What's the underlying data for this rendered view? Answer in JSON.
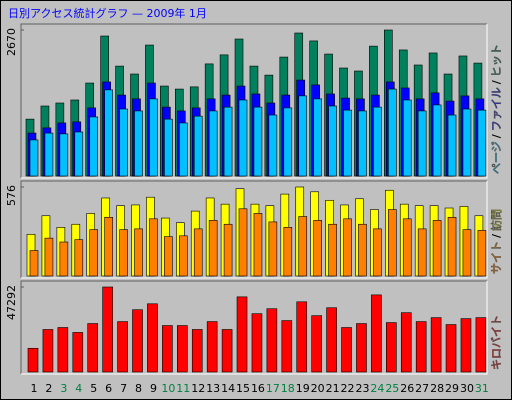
{
  "title": "日別アクセス統計グラフ — 2009年 1月",
  "chart_data": [
    {
      "type": "bar",
      "ylim": [
        0,
        2670
      ],
      "yticks": [
        2670
      ],
      "legend_separator": "/",
      "series": [
        {
          "name": "ページ",
          "color": "#00c0ff",
          "values": [
            660,
            785,
            770,
            805,
            1080,
            1575,
            1225,
            1190,
            1410,
            1040,
            970,
            1095,
            1190,
            1260,
            1390,
            1260,
            1115,
            1245,
            1465,
            1410,
            1280,
            1205,
            1190,
            1260,
            1590,
            1390,
            1190,
            1300,
            1115,
            1225,
            1205
          ]
        },
        {
          "name": "ファイル",
          "color": "#0000ff",
          "values": [
            785,
            880,
            970,
            990,
            1245,
            1720,
            1480,
            1410,
            1700,
            1260,
            1190,
            1245,
            1410,
            1480,
            1645,
            1500,
            1335,
            1480,
            1755,
            1665,
            1500,
            1425,
            1410,
            1480,
            1720,
            1610,
            1410,
            1520,
            1370,
            1465,
            1410
          ]
        },
        {
          "name": "ヒット",
          "color": "#00805c",
          "values": [
            1040,
            1280,
            1335,
            1390,
            1700,
            2560,
            2010,
            1865,
            2395,
            1645,
            1590,
            1630,
            2050,
            2215,
            2505,
            2010,
            1845,
            2175,
            2615,
            2470,
            2230,
            1975,
            1920,
            2375,
            2670,
            2305,
            2030,
            2250,
            1865,
            2195,
            2065
          ]
        }
      ]
    },
    {
      "type": "bar",
      "ylim": [
        0,
        576
      ],
      "yticks": [
        576
      ],
      "legend_separator": "/",
      "series": [
        {
          "name": "サイト",
          "color": "#ff8000",
          "values": [
            165,
            245,
            220,
            235,
            300,
            380,
            300,
            305,
            370,
            255,
            260,
            305,
            360,
            335,
            435,
            405,
            350,
            315,
            385,
            360,
            335,
            370,
            335,
            305,
            430,
            370,
            305,
            360,
            380,
            300,
            295
          ]
        },
        {
          "name": "訪問",
          "color": "#ffff00",
          "values": [
            270,
            390,
            315,
            335,
            405,
            505,
            455,
            460,
            510,
            375,
            345,
            420,
            505,
            465,
            565,
            465,
            455,
            530,
            576,
            545,
            490,
            460,
            500,
            430,
            555,
            465,
            455,
            455,
            440,
            450,
            390
          ]
        }
      ]
    },
    {
      "type": "bar",
      "ylim": [
        0,
        47292
      ],
      "yticks": [
        47292
      ],
      "categories": [
        "1",
        "2",
        "3",
        "4",
        "5",
        "6",
        "7",
        "8",
        "9",
        "10",
        "11",
        "12",
        "13",
        "14",
        "15",
        "16",
        "17",
        "18",
        "19",
        "20",
        "21",
        "22",
        "23",
        "24",
        "25",
        "26",
        "27",
        "28",
        "29",
        "30",
        "31"
      ],
      "category_colors": [
        "#000",
        "#000",
        "#008040",
        "#008040",
        "#000",
        "#000",
        "#000",
        "#000",
        "#000",
        "#008040",
        "#008040",
        "#000",
        "#000",
        "#000",
        "#000",
        "#000",
        "#008040",
        "#008040",
        "#000",
        "#000",
        "#000",
        "#000",
        "#000",
        "#008040",
        "#008040",
        "#000",
        "#000",
        "#000",
        "#000",
        "#000",
        "#008040"
      ],
      "series": [
        {
          "name": "キロバイト",
          "color": "#ff0000",
          "values": [
            13200,
            23650,
            24750,
            22000,
            26950,
            47292,
            28050,
            34650,
            37950,
            25850,
            25850,
            23650,
            28050,
            23650,
            41800,
            32450,
            35200,
            28600,
            39050,
            31350,
            35750,
            24750,
            26950,
            42900,
            27500,
            33000,
            28050,
            30250,
            26400,
            29700,
            30250
          ]
        }
      ]
    }
  ]
}
